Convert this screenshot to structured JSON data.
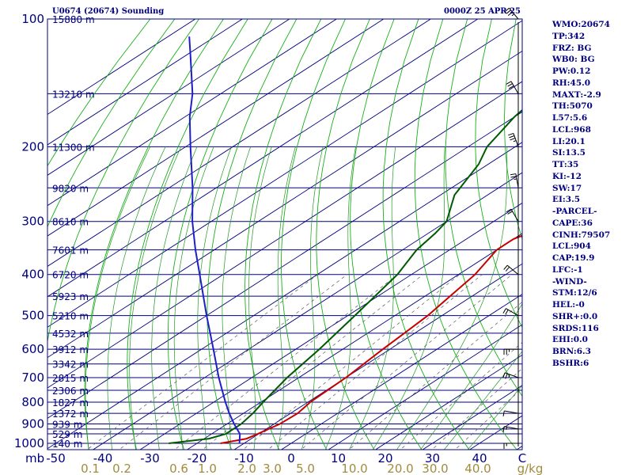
{
  "header": {
    "title": "U0674 (20674) Sounding",
    "time": "0000Z 25 APR 25"
  },
  "indices": [
    "WMO:20674",
    "TP:342",
    "FRZ: BG",
    "WB0: BG",
    "PW:0.12",
    "RH:45.0",
    "MAXT:-2.9",
    "TH:5070",
    "L57:5.6",
    "LCL:968",
    "LI:20.1",
    "SI:13.5",
    "TT:35",
    "KI:-12",
    "SW:17",
    "EI:3.5",
    "-PARCEL-",
    "CAPE:36",
    "CINH:79507",
    "LCL:904",
    "CAP:19.9",
    "LFC:-1",
    "-WIND-",
    "STM:12/6",
    "HEL:-0",
    "SHR+:0.0",
    "SRDS:116",
    "EHI:0.0",
    "BRN:6.3",
    "BSHR:6"
  ],
  "colors": {
    "frame": "#00007f",
    "isobar": "#00007f",
    "isotherm": "#00007f",
    "dry_adiabat": "#18b018",
    "moist_adiabat": "#1e9a1e",
    "mixing_ratio": "#5a5a5a",
    "temperature": "#c80000",
    "dewpoint": "#005a00",
    "parcel": "#1f1fc8",
    "wetbulb": "#40a8d8",
    "wind": "#000000"
  },
  "chart_data": {
    "type": "skew-t log-p sounding",
    "x_axis": {
      "unit_label": "C",
      "ticks": [
        -50,
        -40,
        -30,
        -20,
        -10,
        0,
        10,
        20,
        30,
        40
      ],
      "tick_labels": [
        "-50",
        "-40",
        "-30",
        "-20",
        "-10",
        "0",
        "10",
        "20",
        "30",
        "40"
      ]
    },
    "y_axis": {
      "unit_label": "mb",
      "scale": "log",
      "ticks": [
        100,
        200,
        300,
        400,
        500,
        600,
        700,
        800,
        900,
        1000
      ],
      "tick_labels": [
        "100",
        "200",
        "300",
        "400",
        "500",
        "600",
        "700",
        "800",
        "900",
        "1000"
      ],
      "range": [
        1050,
        100
      ]
    },
    "isobars": [
      100,
      150,
      200,
      250,
      300,
      350,
      400,
      450,
      500,
      550,
      600,
      650,
      700,
      750,
      800,
      850,
      900,
      925,
      950,
      1000
    ],
    "height_labels": [
      {
        "p": 100,
        "label": "15880 m"
      },
      {
        "p": 150,
        "label": "13210 m"
      },
      {
        "p": 200,
        "label": "11300 m"
      },
      {
        "p": 250,
        "label": "9820 m"
      },
      {
        "p": 300,
        "label": "8610 m"
      },
      {
        "p": 350,
        "label": "7601 m"
      },
      {
        "p": 400,
        "label": "6720 m"
      },
      {
        "p": 450,
        "label": "5923 m"
      },
      {
        "p": 500,
        "label": "5210 m"
      },
      {
        "p": 550,
        "label": "4532 m"
      },
      {
        "p": 600,
        "label": "3912 m"
      },
      {
        "p": 650,
        "label": "3342 m"
      },
      {
        "p": 700,
        "label": "2815 m"
      },
      {
        "p": 750,
        "label": "2306 m"
      },
      {
        "p": 800,
        "label": "1827 m"
      },
      {
        "p": 850,
        "label": "1372 m"
      },
      {
        "p": 900,
        "label": "939 m"
      },
      {
        "p": 950,
        "label": "529 m"
      },
      {
        "p": 1000,
        "label": "140 m"
      }
    ],
    "mixing_ratio": {
      "unit_label": "g/kg",
      "values": [
        0.1,
        0.2,
        0.6,
        1.0,
        2.0,
        3.0,
        5.0,
        10.0,
        20.0,
        30.0,
        40.0
      ],
      "labels": [
        "0.1",
        "0.2",
        "0.6",
        "1.0",
        "2.0",
        "3.0",
        "5.0",
        "10.0",
        "20.0",
        "30.0",
        "40.0"
      ]
    },
    "series": [
      {
        "kind": "temperature",
        "points": [
          [
            1000,
            -15.0
          ],
          [
            975,
            -11.0
          ],
          [
            950,
            -10.2
          ],
          [
            900,
            -8.8
          ],
          [
            850,
            -8.5
          ],
          [
            800,
            -9.5
          ],
          [
            700,
            -10.0
          ],
          [
            600,
            -11.5
          ],
          [
            500,
            -13.0
          ],
          [
            400,
            -16.5
          ],
          [
            350,
            -20.0
          ],
          [
            330,
            -20.0
          ],
          [
            300,
            -16.0
          ],
          [
            260,
            -16.0
          ],
          [
            230,
            -18.0
          ],
          [
            210,
            -15.0
          ],
          [
            185,
            -19.0
          ],
          [
            150,
            -26.0
          ],
          [
            120,
            -33.0
          ],
          [
            100,
            -38.0
          ]
        ]
      },
      {
        "kind": "dewpoint",
        "points": [
          [
            1000,
            -26.0
          ],
          [
            975,
            -19.0
          ],
          [
            950,
            -17.0
          ],
          [
            900,
            -17.0
          ],
          [
            850,
            -18.0
          ],
          [
            800,
            -19.5
          ],
          [
            700,
            -22.5
          ],
          [
            600,
            -25.0
          ],
          [
            500,
            -28.5
          ],
          [
            400,
            -33.0
          ],
          [
            350,
            -37.0
          ],
          [
            320,
            -38.5
          ],
          [
            300,
            -40.0
          ],
          [
            260,
            -47.0
          ],
          [
            220,
            -52.0
          ],
          [
            200,
            -56.0
          ],
          [
            170,
            -60.0
          ],
          [
            150,
            -62.0
          ],
          [
            125,
            -67.5
          ],
          [
            100,
            -75.0
          ]
        ]
      },
      {
        "kind": "parcel",
        "points": [
          [
            1000,
            -11.0
          ],
          [
            950,
            -14.0
          ],
          [
            900,
            -18.5
          ],
          [
            850,
            -23.0
          ],
          [
            800,
            -27.5
          ],
          [
            700,
            -37.0
          ],
          [
            600,
            -47.5
          ],
          [
            500,
            -60.0
          ],
          [
            400,
            -75.0
          ],
          [
            350,
            -84.0
          ],
          [
            300,
            -94.0
          ],
          [
            250,
            -105.0
          ],
          [
            200,
            -119.0
          ],
          [
            170,
            -129.0
          ],
          [
            150,
            -136.0
          ],
          [
            120,
            -150.0
          ],
          [
            110,
            -155.5
          ]
        ]
      }
    ],
    "wind_barbs": [
      {
        "p": 1000,
        "dir": 270,
        "spd": 5
      },
      {
        "p": 925,
        "dir": 280,
        "spd": 5
      },
      {
        "p": 850,
        "dir": 280,
        "spd": 10
      },
      {
        "p": 700,
        "dir": 290,
        "spd": 15
      },
      {
        "p": 600,
        "dir": 270,
        "spd": 15
      },
      {
        "p": 500,
        "dir": 300,
        "spd": 20
      },
      {
        "p": 400,
        "dir": 310,
        "spd": 20
      },
      {
        "p": 300,
        "dir": 330,
        "spd": 20
      },
      {
        "p": 250,
        "dir": 350,
        "spd": 15
      },
      {
        "p": 200,
        "dir": 340,
        "spd": 25
      },
      {
        "p": 150,
        "dir": 330,
        "spd": 30
      },
      {
        "p": 100,
        "dir": 320,
        "spd": 25
      }
    ]
  }
}
